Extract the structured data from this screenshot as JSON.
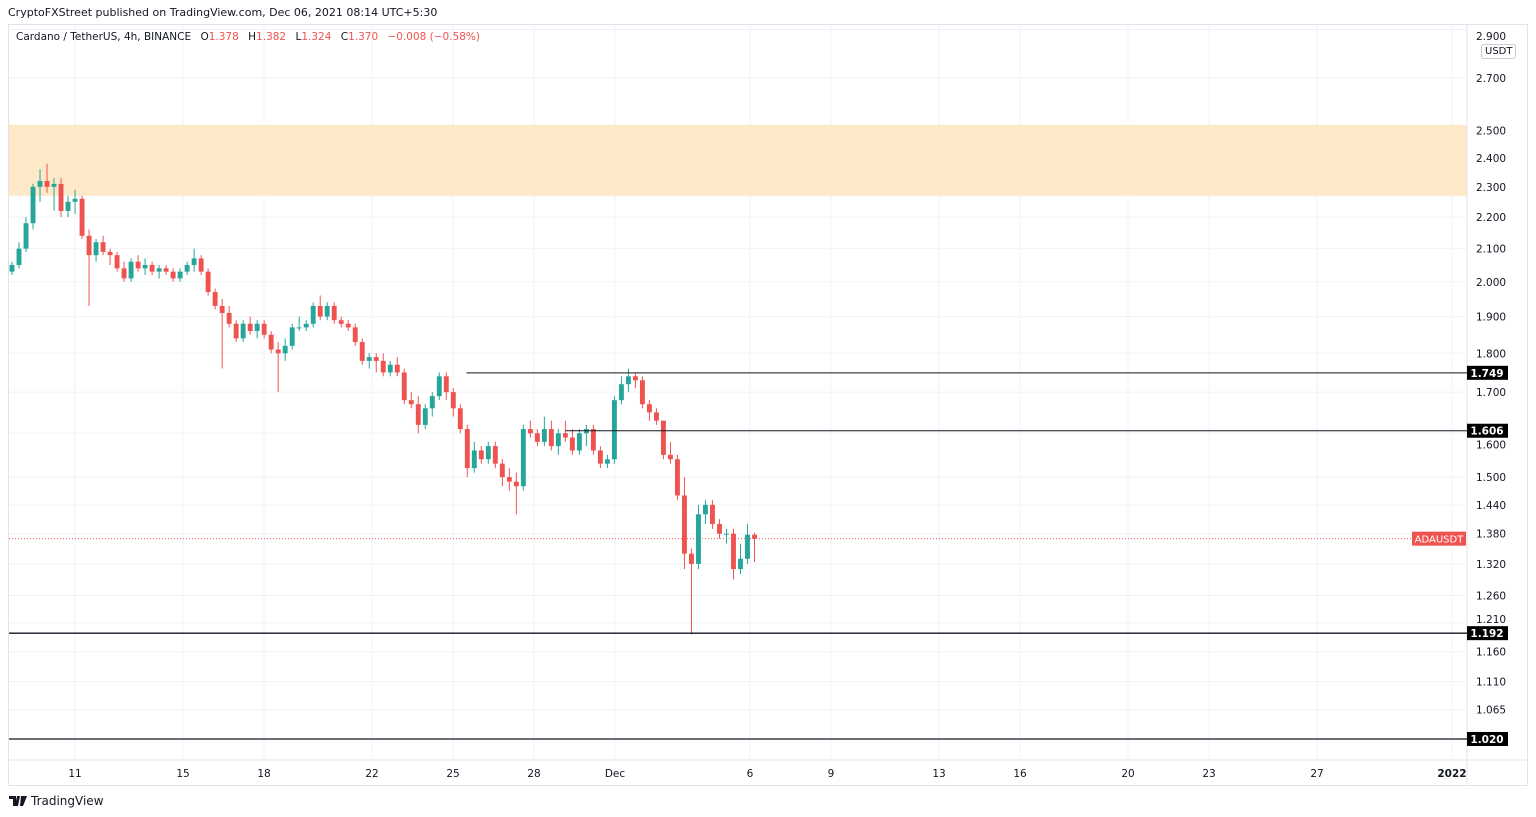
{
  "header": {
    "published": "CryptoFXStreet published on TradingView.com, Dec 06, 2021 08:14 UTC+5:30"
  },
  "legend": {
    "symbol": "Cardano / TetherUS, 4h, BINANCE",
    "o_label": "O",
    "o": "1.378",
    "h_label": "H",
    "h": "1.382",
    "l_label": "L",
    "l": "1.324",
    "c_label": "C",
    "c": "1.370",
    "change": "−0.008 (−0.58%)"
  },
  "axis_currency": "USDT",
  "footer": {
    "brand": "TradingView"
  },
  "colors": {
    "up": "#26a69a",
    "down": "#ef5350",
    "zone": "#fde9c8",
    "level": "#131722",
    "price_line": "#ef5350"
  },
  "chart_data": {
    "type": "candlestick",
    "title": "",
    "symbol": "ADAUSDT",
    "interval": "4h",
    "y_scale": "log",
    "ylim": [
      1.0,
      2.9
    ],
    "x_range": [
      "2021-11-08T14:00",
      "2022-01-01T12:00"
    ],
    "grid": true,
    "y_ticks": [
      "2.900",
      "2.700",
      "2.500",
      "2.400",
      "2.300",
      "2.200",
      "2.100",
      "2.000",
      "1.900",
      "1.800",
      "1.700",
      "1.600",
      "1.500",
      "1.440",
      "1.380",
      "1.320",
      "1.260",
      "1.210",
      "1.160",
      "1.110",
      "1.065"
    ],
    "x_ticks": [
      {
        "label": "11",
        "date": "2021-11-11"
      },
      {
        "label": "15",
        "date": "2021-11-15"
      },
      {
        "label": "18",
        "date": "2021-11-18"
      },
      {
        "label": "22",
        "date": "2021-11-22"
      },
      {
        "label": "25",
        "date": "2021-11-25"
      },
      {
        "label": "28",
        "date": "2021-11-28"
      },
      {
        "label": "Dec",
        "date": "2021-12-01"
      },
      {
        "label": "6",
        "date": "2021-12-06"
      },
      {
        "label": "9",
        "date": "2021-12-09"
      },
      {
        "label": "13",
        "date": "2021-12-13"
      },
      {
        "label": "16",
        "date": "2021-12-16"
      },
      {
        "label": "20",
        "date": "2021-12-20"
      },
      {
        "label": "23",
        "date": "2021-12-23"
      },
      {
        "label": "27",
        "date": "2021-12-27"
      },
      {
        "label": "2022",
        "date": "2022-01-01"
      }
    ],
    "candles_span": [
      "2021-11-08T16:00",
      "2021-12-06T04:00"
    ],
    "candles_ohlc": [
      [
        2.03,
        2.06,
        2.02,
        2.05
      ],
      [
        2.05,
        2.12,
        2.04,
        2.1
      ],
      [
        2.1,
        2.2,
        2.09,
        2.18
      ],
      [
        2.18,
        2.31,
        2.16,
        2.3
      ],
      [
        2.3,
        2.36,
        2.25,
        2.32
      ],
      [
        2.32,
        2.38,
        2.28,
        2.3
      ],
      [
        2.3,
        2.33,
        2.22,
        2.31
      ],
      [
        2.31,
        2.33,
        2.2,
        2.22
      ],
      [
        2.22,
        2.27,
        2.2,
        2.25
      ],
      [
        2.25,
        2.29,
        2.21,
        2.26
      ],
      [
        2.26,
        2.27,
        2.13,
        2.14
      ],
      [
        2.14,
        2.16,
        1.93,
        2.08
      ],
      [
        2.08,
        2.13,
        2.06,
        2.12
      ],
      [
        2.12,
        2.14,
        2.08,
        2.09
      ],
      [
        2.09,
        2.1,
        2.05,
        2.08
      ],
      [
        2.08,
        2.09,
        2.03,
        2.04
      ],
      [
        2.04,
        2.06,
        2.0,
        2.01
      ],
      [
        2.01,
        2.07,
        2.0,
        2.06
      ],
      [
        2.06,
        2.08,
        2.03,
        2.04
      ],
      [
        2.04,
        2.07,
        2.02,
        2.05
      ],
      [
        2.05,
        2.06,
        2.02,
        2.03
      ],
      [
        2.03,
        2.05,
        2.01,
        2.04
      ],
      [
        2.04,
        2.05,
        2.02,
        2.03
      ],
      [
        2.03,
        2.04,
        2.0,
        2.01
      ],
      [
        2.01,
        2.04,
        2.0,
        2.03
      ],
      [
        2.03,
        2.06,
        2.02,
        2.05
      ],
      [
        2.05,
        2.1,
        2.03,
        2.07
      ],
      [
        2.07,
        2.08,
        2.02,
        2.03
      ],
      [
        2.03,
        2.04,
        1.96,
        1.97
      ],
      [
        1.97,
        1.98,
        1.92,
        1.93
      ],
      [
        1.93,
        1.95,
        1.76,
        1.91
      ],
      [
        1.91,
        1.93,
        1.87,
        1.88
      ],
      [
        1.88,
        1.89,
        1.83,
        1.84
      ],
      [
        1.84,
        1.89,
        1.83,
        1.88
      ],
      [
        1.88,
        1.9,
        1.85,
        1.86
      ],
      [
        1.86,
        1.89,
        1.84,
        1.88
      ],
      [
        1.88,
        1.89,
        1.84,
        1.85
      ],
      [
        1.85,
        1.86,
        1.8,
        1.81
      ],
      [
        1.81,
        1.83,
        1.7,
        1.8
      ],
      [
        1.8,
        1.84,
        1.78,
        1.82
      ],
      [
        1.82,
        1.88,
        1.81,
        1.87
      ],
      [
        1.87,
        1.9,
        1.86,
        1.87
      ],
      [
        1.87,
        1.89,
        1.86,
        1.88
      ],
      [
        1.88,
        1.94,
        1.87,
        1.93
      ],
      [
        1.93,
        1.96,
        1.89,
        1.9
      ],
      [
        1.9,
        1.94,
        1.89,
        1.93
      ],
      [
        1.93,
        1.94,
        1.88,
        1.89
      ],
      [
        1.89,
        1.9,
        1.87,
        1.88
      ],
      [
        1.88,
        1.89,
        1.86,
        1.87
      ],
      [
        1.87,
        1.88,
        1.82,
        1.83
      ],
      [
        1.83,
        1.84,
        1.77,
        1.78
      ],
      [
        1.78,
        1.8,
        1.76,
        1.79
      ],
      [
        1.79,
        1.8,
        1.75,
        1.78
      ],
      [
        1.78,
        1.8,
        1.74,
        1.75
      ],
      [
        1.75,
        1.78,
        1.74,
        1.77
      ],
      [
        1.77,
        1.79,
        1.74,
        1.75
      ],
      [
        1.75,
        1.76,
        1.67,
        1.68
      ],
      [
        1.68,
        1.7,
        1.66,
        1.67
      ],
      [
        1.67,
        1.69,
        1.6,
        1.62
      ],
      [
        1.62,
        1.67,
        1.61,
        1.66
      ],
      [
        1.66,
        1.7,
        1.64,
        1.69
      ],
      [
        1.69,
        1.75,
        1.68,
        1.74
      ],
      [
        1.74,
        1.75,
        1.68,
        1.7
      ],
      [
        1.7,
        1.71,
        1.64,
        1.66
      ],
      [
        1.66,
        1.67,
        1.6,
        1.61
      ],
      [
        1.61,
        1.62,
        1.5,
        1.52
      ],
      [
        1.52,
        1.58,
        1.51,
        1.56
      ],
      [
        1.56,
        1.57,
        1.53,
        1.54
      ],
      [
        1.54,
        1.58,
        1.53,
        1.57
      ],
      [
        1.57,
        1.58,
        1.52,
        1.53
      ],
      [
        1.53,
        1.54,
        1.48,
        1.5
      ],
      [
        1.5,
        1.52,
        1.47,
        1.49
      ],
      [
        1.49,
        1.51,
        1.42,
        1.48
      ],
      [
        1.48,
        1.62,
        1.47,
        1.61
      ],
      [
        1.61,
        1.63,
        1.59,
        1.6
      ],
      [
        1.6,
        1.61,
        1.57,
        1.58
      ],
      [
        1.58,
        1.64,
        1.57,
        1.61
      ],
      [
        1.61,
        1.63,
        1.56,
        1.57
      ],
      [
        1.57,
        1.61,
        1.55,
        1.6
      ],
      [
        1.6,
        1.63,
        1.58,
        1.59
      ],
      [
        1.59,
        1.61,
        1.55,
        1.56
      ],
      [
        1.56,
        1.61,
        1.55,
        1.6
      ],
      [
        1.6,
        1.62,
        1.57,
        1.61
      ],
      [
        1.61,
        1.62,
        1.55,
        1.56
      ],
      [
        1.56,
        1.57,
        1.52,
        1.53
      ],
      [
        1.53,
        1.55,
        1.52,
        1.54
      ],
      [
        1.54,
        1.69,
        1.53,
        1.68
      ],
      [
        1.68,
        1.74,
        1.67,
        1.72
      ],
      [
        1.72,
        1.76,
        1.7,
        1.74
      ],
      [
        1.74,
        1.75,
        1.71,
        1.73
      ],
      [
        1.73,
        1.74,
        1.66,
        1.67
      ],
      [
        1.67,
        1.68,
        1.63,
        1.65
      ],
      [
        1.65,
        1.66,
        1.62,
        1.63
      ],
      [
        1.63,
        1.63,
        1.54,
        1.55
      ],
      [
        1.55,
        1.58,
        1.53,
        1.54
      ],
      [
        1.54,
        1.55,
        1.45,
        1.46
      ],
      [
        1.46,
        1.5,
        1.31,
        1.34
      ],
      [
        1.34,
        1.35,
        1.19,
        1.32
      ],
      [
        1.32,
        1.44,
        1.31,
        1.42
      ],
      [
        1.42,
        1.45,
        1.4,
        1.44
      ],
      [
        1.44,
        1.45,
        1.39,
        1.4
      ],
      [
        1.4,
        1.41,
        1.37,
        1.38
      ],
      [
        1.38,
        1.39,
        1.36,
        1.38
      ],
      [
        1.38,
        1.39,
        1.29,
        1.31
      ],
      [
        1.31,
        1.36,
        1.3,
        1.33
      ],
      [
        1.33,
        1.4,
        1.32,
        1.378
      ],
      [
        1.378,
        1.382,
        1.324,
        1.37
      ]
    ],
    "supply_zone": [
      2.27,
      2.52
    ],
    "levels": [
      {
        "label": "1.749",
        "value": 1.749,
        "from": "2021-11-25T12:00"
      },
      {
        "label": "1.606",
        "value": 1.606,
        "from": "2021-11-29T04:00"
      },
      {
        "label": "1.192",
        "value": 1.192,
        "from": null
      },
      {
        "label": "1.020",
        "value": 1.02,
        "from": null
      }
    ],
    "last_price": {
      "value": 1.37,
      "label": "ADAUSDT"
    }
  }
}
